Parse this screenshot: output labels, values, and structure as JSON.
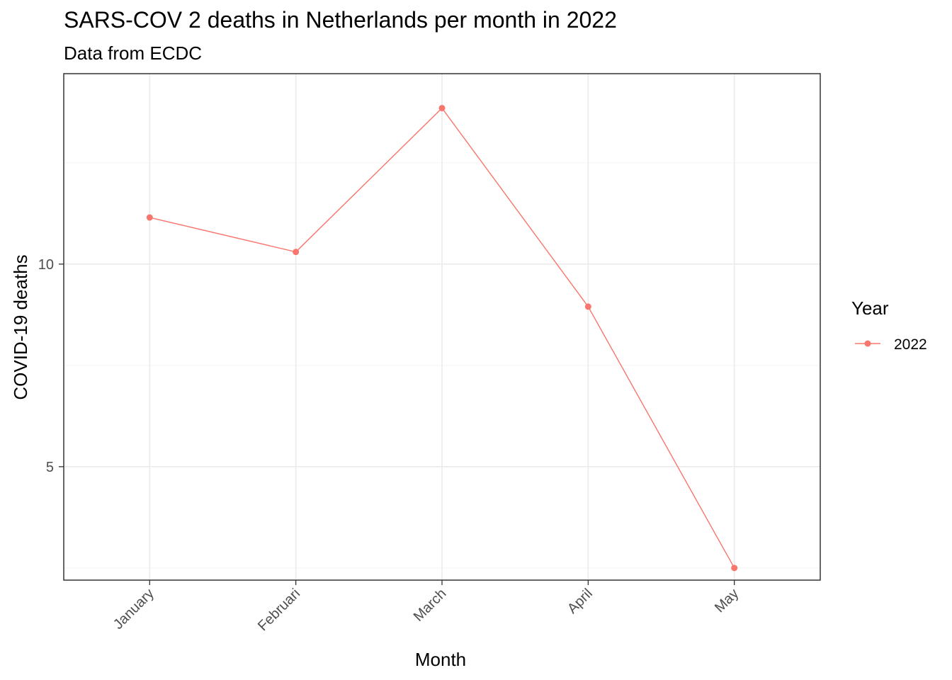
{
  "chart_data": {
    "type": "line",
    "title": "SARS-COV 2 deaths in Netherlands per month in 2022",
    "subtitle": "Data from ECDC",
    "xlabel": "Month",
    "ylabel": "COVID-19 deaths",
    "categories": [
      "January",
      "Februari",
      "March",
      "April",
      "May"
    ],
    "ylim": [
      2.2,
      14.7
    ],
    "yticks": [
      5,
      10
    ],
    "grid": true,
    "legend": {
      "title": "Year",
      "placement": "right"
    },
    "series": [
      {
        "name": "2022",
        "color": "#F8766D",
        "values": [
          11.15,
          10.3,
          13.85,
          8.95,
          2.5
        ]
      }
    ]
  }
}
